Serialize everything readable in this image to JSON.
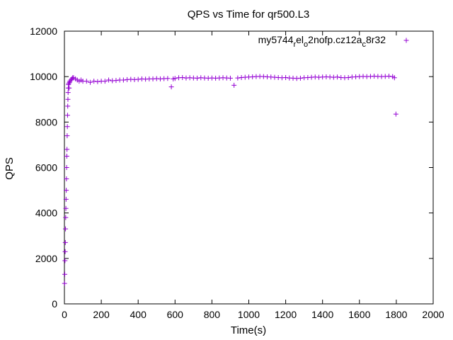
{
  "chart_data": {
    "type": "scatter",
    "title": "QPS vs Time for qr500.L3",
    "xlabel": "Time(s)",
    "ylabel": "QPS",
    "xlim": [
      0,
      2000
    ],
    "ylim": [
      0,
      12000
    ],
    "xticks": [
      0,
      200,
      400,
      600,
      800,
      1000,
      1200,
      1400,
      1600,
      1800,
      2000
    ],
    "yticks": [
      0,
      2000,
      4000,
      6000,
      8000,
      10000,
      12000
    ],
    "grid": false,
    "legend_position": "top-right",
    "marker": "plus",
    "color": "#9400d3",
    "series": [
      {
        "name": "my5744_rel_o2nofp.cz12a_c8r32",
        "legend_parts": [
          {
            "text": "my5744",
            "shift": "none"
          },
          {
            "text": "r",
            "shift": "sub"
          },
          {
            "text": "el",
            "shift": "none"
          },
          {
            "text": "o",
            "shift": "sub"
          },
          {
            "text": "2nofp.cz12a",
            "shift": "none"
          },
          {
            "text": "c",
            "shift": "sub"
          },
          {
            "text": "8r32",
            "shift": "none"
          }
        ],
        "points": [
          [
            1,
            900
          ],
          [
            2,
            1300
          ],
          [
            3,
            1900
          ],
          [
            4,
            2300
          ],
          [
            5,
            2700
          ],
          [
            6,
            3300
          ],
          [
            7,
            3800
          ],
          [
            8,
            4200
          ],
          [
            9,
            4600
          ],
          [
            10,
            5000
          ],
          [
            11,
            5500
          ],
          [
            12,
            6000
          ],
          [
            13,
            6500
          ],
          [
            14,
            6800
          ],
          [
            15,
            7400
          ],
          [
            16,
            7800
          ],
          [
            17,
            8300
          ],
          [
            18,
            8700
          ],
          [
            19,
            9000
          ],
          [
            20,
            9300
          ],
          [
            21,
            9500
          ],
          [
            22,
            9650
          ],
          [
            24,
            9700
          ],
          [
            26,
            9500
          ],
          [
            28,
            9750
          ],
          [
            30,
            9800
          ],
          [
            35,
            9850
          ],
          [
            40,
            9900
          ],
          [
            45,
            9950
          ],
          [
            50,
            9950
          ],
          [
            60,
            9900
          ],
          [
            70,
            9850
          ],
          [
            80,
            9800
          ],
          [
            90,
            9850
          ],
          [
            100,
            9800
          ],
          [
            120,
            9800
          ],
          [
            140,
            9750
          ],
          [
            160,
            9800
          ],
          [
            180,
            9780
          ],
          [
            200,
            9800
          ],
          [
            220,
            9800
          ],
          [
            240,
            9850
          ],
          [
            260,
            9820
          ],
          [
            280,
            9830
          ],
          [
            300,
            9850
          ],
          [
            320,
            9850
          ],
          [
            340,
            9870
          ],
          [
            360,
            9880
          ],
          [
            380,
            9870
          ],
          [
            400,
            9880
          ],
          [
            420,
            9900
          ],
          [
            440,
            9890
          ],
          [
            460,
            9900
          ],
          [
            480,
            9900
          ],
          [
            500,
            9910
          ],
          [
            520,
            9900
          ],
          [
            540,
            9910
          ],
          [
            560,
            9920
          ],
          [
            580,
            9550
          ],
          [
            590,
            9900
          ],
          [
            600,
            9920
          ],
          [
            620,
            9950
          ],
          [
            640,
            9960
          ],
          [
            660,
            9940
          ],
          [
            680,
            9950
          ],
          [
            700,
            9940
          ],
          [
            720,
            9930
          ],
          [
            740,
            9950
          ],
          [
            760,
            9940
          ],
          [
            780,
            9930
          ],
          [
            800,
            9940
          ],
          [
            820,
            9930
          ],
          [
            840,
            9940
          ],
          [
            860,
            9950
          ],
          [
            880,
            9940
          ],
          [
            900,
            9930
          ],
          [
            920,
            9620
          ],
          [
            940,
            9940
          ],
          [
            960,
            9960
          ],
          [
            980,
            9970
          ],
          [
            1000,
            9980
          ],
          [
            1020,
            9990
          ],
          [
            1040,
            10000
          ],
          [
            1060,
            10010
          ],
          [
            1080,
            10000
          ],
          [
            1100,
            9990
          ],
          [
            1120,
            9980
          ],
          [
            1140,
            9970
          ],
          [
            1160,
            9960
          ],
          [
            1180,
            9950
          ],
          [
            1200,
            9960
          ],
          [
            1220,
            9940
          ],
          [
            1240,
            9930
          ],
          [
            1260,
            9920
          ],
          [
            1280,
            9930
          ],
          [
            1300,
            9950
          ],
          [
            1320,
            9960
          ],
          [
            1340,
            9970
          ],
          [
            1360,
            9980
          ],
          [
            1380,
            9970
          ],
          [
            1400,
            9980
          ],
          [
            1420,
            9990
          ],
          [
            1440,
            9980
          ],
          [
            1460,
            9970
          ],
          [
            1480,
            9980
          ],
          [
            1500,
            9960
          ],
          [
            1520,
            9950
          ],
          [
            1540,
            9960
          ],
          [
            1560,
            9980
          ],
          [
            1580,
            9990
          ],
          [
            1600,
            10000
          ],
          [
            1620,
            10010
          ],
          [
            1640,
            10000
          ],
          [
            1660,
            10010
          ],
          [
            1680,
            10020
          ],
          [
            1700,
            10010
          ],
          [
            1720,
            10000
          ],
          [
            1740,
            10010
          ],
          [
            1760,
            10020
          ],
          [
            1780,
            10000
          ],
          [
            1790,
            9950
          ],
          [
            1798,
            8350
          ]
        ]
      }
    ]
  }
}
